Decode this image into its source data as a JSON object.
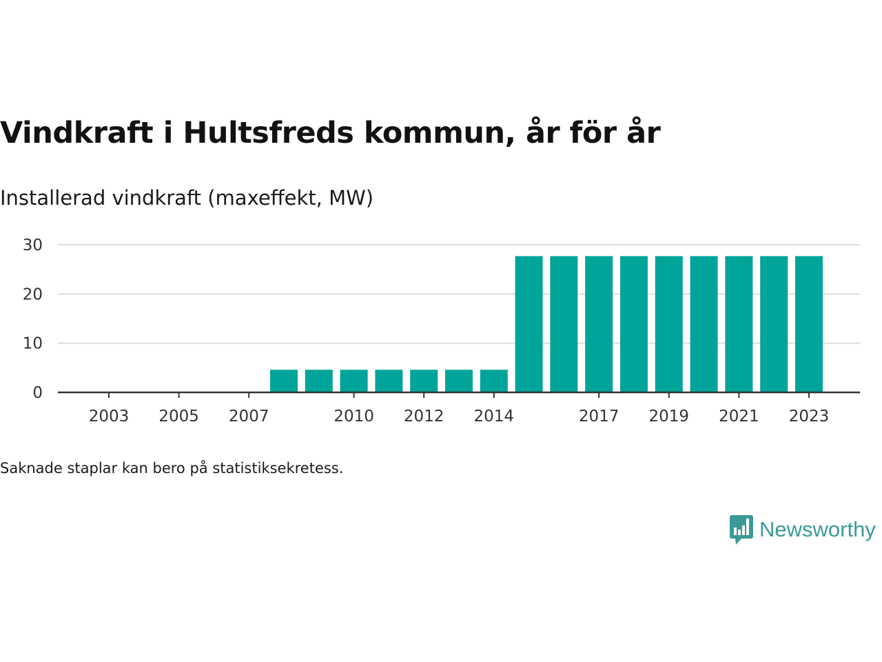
{
  "title": "Vindkraft i Hultsfreds kommun, år för år",
  "subtitle": "Installerad vindkraft (maxeffekt, MW)",
  "footnote": "Saknade staplar kan bero på statistiksekretess.",
  "brand": {
    "name": "Newsworthy",
    "icon": "newsworthy-logo-icon",
    "color": "#3a9a98"
  },
  "chart_data": {
    "type": "bar",
    "title": "Vindkraft i Hultsfreds kommun, år för år",
    "ylabel": "Installerad vindkraft (maxeffekt, MW)",
    "xlabel": "",
    "categories": [
      2003,
      2004,
      2005,
      2006,
      2007,
      2008,
      2009,
      2010,
      2011,
      2012,
      2013,
      2014,
      2015,
      2016,
      2017,
      2018,
      2019,
      2020,
      2021,
      2022,
      2023
    ],
    "values": [
      0,
      0,
      0,
      0,
      0,
      4.6,
      4.6,
      4.6,
      4.6,
      4.6,
      4.6,
      4.6,
      27.7,
      27.7,
      27.7,
      27.7,
      27.7,
      27.7,
      27.7,
      27.7,
      27.7
    ],
    "x_tick_labels": [
      "2003",
      "2005",
      "2007",
      "2010",
      "2012",
      "2014",
      "2017",
      "2019",
      "2021",
      "2023"
    ],
    "y_ticks": [
      0,
      10,
      20,
      30
    ],
    "ylim": [
      0,
      30
    ],
    "grid": true,
    "bar_color": "#00a49a",
    "grid_color": "#dddddd",
    "axis_color": "#333333"
  }
}
